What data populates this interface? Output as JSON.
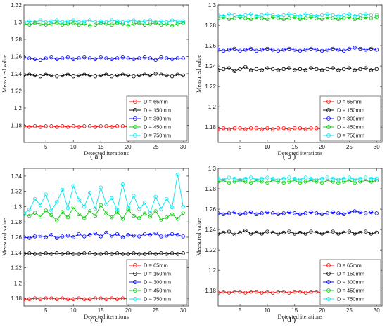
{
  "chart_data": [
    {
      "type": "line",
      "panel_label": "( a )",
      "xlabel": "Detected iterations",
      "ylabel": "Measured value",
      "xlim": [
        1,
        31
      ],
      "ylim": [
        1.16,
        1.32
      ],
      "xticks": [
        5,
        10,
        15,
        20,
        25,
        30
      ],
      "yticks": [
        1.18,
        1.2,
        1.22,
        1.24,
        1.26,
        1.28,
        1.3,
        1.32
      ],
      "legend_position": "bottom-right",
      "x": [
        1,
        2,
        3,
        4,
        5,
        6,
        7,
        8,
        9,
        10,
        11,
        12,
        13,
        14,
        15,
        16,
        17,
        18,
        19,
        20,
        21,
        22,
        23,
        24,
        25,
        26,
        27,
        28,
        29,
        30
      ],
      "series": [
        {
          "name": "D = 65mm",
          "color": "#ff0000",
          "values": [
            1.179,
            1.178,
            1.179,
            1.178,
            1.179,
            1.179,
            1.178,
            1.179,
            1.178,
            1.179,
            1.178,
            1.179,
            1.179,
            1.178,
            1.179,
            1.179,
            1.178,
            1.179,
            1.179,
            1.178,
            1.18,
            1.179,
            1.18,
            1.179,
            1.178,
            1.179,
            1.179,
            1.178,
            1.179,
            1.179
          ]
        },
        {
          "name": "D = 150mm",
          "color": "#000000",
          "values": [
            1.238,
            1.239,
            1.238,
            1.237,
            1.239,
            1.238,
            1.237,
            1.238,
            1.239,
            1.237,
            1.238,
            1.239,
            1.238,
            1.237,
            1.238,
            1.239,
            1.237,
            1.238,
            1.239,
            1.238,
            1.237,
            1.238,
            1.239,
            1.238,
            1.24,
            1.239,
            1.238,
            1.237,
            1.239,
            1.238
          ]
        },
        {
          "name": "D = 300mm",
          "color": "#0000ff",
          "values": [
            1.259,
            1.258,
            1.257,
            1.256,
            1.258,
            1.259,
            1.257,
            1.258,
            1.259,
            1.257,
            1.258,
            1.259,
            1.258,
            1.257,
            1.259,
            1.258,
            1.257,
            1.258,
            1.259,
            1.258,
            1.257,
            1.258,
            1.259,
            1.258,
            1.256,
            1.259,
            1.258,
            1.257,
            1.258,
            1.258
          ]
        },
        {
          "name": "D = 450mm",
          "color": "#00cc00",
          "values": [
            1.298,
            1.297,
            1.299,
            1.298,
            1.297,
            1.298,
            1.299,
            1.297,
            1.298,
            1.299,
            1.297,
            1.298,
            1.296,
            1.297,
            1.299,
            1.298,
            1.297,
            1.299,
            1.298,
            1.296,
            1.298,
            1.299,
            1.297,
            1.298,
            1.299,
            1.297,
            1.298,
            1.296,
            1.298,
            1.299
          ]
        },
        {
          "name": "D = 750mm",
          "color": "#00e5ee",
          "values": [
            1.3,
            1.301,
            1.3,
            1.302,
            1.3,
            1.301,
            1.302,
            1.3,
            1.301,
            1.302,
            1.3,
            1.301,
            1.302,
            1.3,
            1.301,
            1.3,
            1.302,
            1.301,
            1.3,
            1.301,
            1.302,
            1.3,
            1.301,
            1.302,
            1.3,
            1.301,
            1.3,
            1.302,
            1.301,
            1.301
          ]
        }
      ]
    },
    {
      "type": "line",
      "panel_label": "( b )",
      "xlabel": "Detected iterations",
      "ylabel": "Measured value",
      "xlim": [
        1,
        31
      ],
      "ylim": [
        1.165,
        1.3
      ],
      "xticks": [
        5,
        10,
        15,
        20,
        25,
        30
      ],
      "yticks": [
        1.18,
        1.2,
        1.22,
        1.24,
        1.26,
        1.28,
        1.3
      ],
      "legend_position": "bottom-right",
      "x": [
        1,
        2,
        3,
        4,
        5,
        6,
        7,
        8,
        9,
        10,
        11,
        12,
        13,
        14,
        15,
        16,
        17,
        18,
        19,
        20,
        21,
        22,
        23,
        24,
        25,
        26,
        27,
        28,
        29,
        30
      ],
      "series": [
        {
          "name": "D = 65mm",
          "color": "#ff0000",
          "values": [
            1.178,
            1.179,
            1.178,
            1.179,
            1.179,
            1.178,
            1.179,
            1.179,
            1.178,
            1.179,
            1.178,
            1.179,
            1.179,
            1.178,
            1.179,
            1.179,
            1.178,
            1.179,
            1.179,
            1.178,
            1.18,
            1.181,
            1.179,
            1.18,
            1.179,
            1.178,
            1.179,
            1.179,
            1.178,
            1.179
          ]
        },
        {
          "name": "D = 150mm",
          "color": "#000000",
          "values": [
            1.236,
            1.237,
            1.238,
            1.235,
            1.237,
            1.239,
            1.236,
            1.237,
            1.236,
            1.238,
            1.237,
            1.236,
            1.237,
            1.238,
            1.236,
            1.237,
            1.236,
            1.238,
            1.237,
            1.236,
            1.237,
            1.238,
            1.236,
            1.237,
            1.238,
            1.236,
            1.237,
            1.238,
            1.236,
            1.237
          ]
        },
        {
          "name": "D = 300mm",
          "color": "#0000ff",
          "values": [
            1.256,
            1.255,
            1.256,
            1.257,
            1.255,
            1.256,
            1.257,
            1.255,
            1.256,
            1.257,
            1.256,
            1.255,
            1.256,
            1.257,
            1.256,
            1.255,
            1.256,
            1.257,
            1.256,
            1.255,
            1.256,
            1.257,
            1.256,
            1.255,
            1.257,
            1.258,
            1.257,
            1.256,
            1.257,
            1.256
          ]
        },
        {
          "name": "D = 450mm",
          "color": "#00cc00",
          "values": [
            1.287,
            1.288,
            1.286,
            1.287,
            1.288,
            1.287,
            1.286,
            1.288,
            1.287,
            1.286,
            1.288,
            1.287,
            1.286,
            1.287,
            1.288,
            1.286,
            1.287,
            1.288,
            1.287,
            1.286,
            1.288,
            1.287,
            1.286,
            1.287,
            1.288,
            1.286,
            1.287,
            1.288,
            1.287,
            1.288
          ]
        },
        {
          "name": "D = 750mm",
          "color": "#00e5ee",
          "values": [
            1.29,
            1.289,
            1.291,
            1.29,
            1.289,
            1.29,
            1.291,
            1.289,
            1.29,
            1.291,
            1.29,
            1.289,
            1.29,
            1.291,
            1.29,
            1.289,
            1.291,
            1.29,
            1.289,
            1.29,
            1.291,
            1.29,
            1.289,
            1.29,
            1.291,
            1.289,
            1.29,
            1.291,
            1.29,
            1.29
          ]
        }
      ]
    },
    {
      "type": "line",
      "panel_label": "( c )",
      "xlabel": "Detected iterations",
      "ylabel": "Measured value",
      "xlim": [
        1,
        31
      ],
      "ylim": [
        1.17,
        1.35
      ],
      "xticks": [
        5,
        10,
        15,
        20,
        25,
        30
      ],
      "yticks": [
        1.18,
        1.2,
        1.22,
        1.24,
        1.26,
        1.28,
        1.3,
        1.32,
        1.34
      ],
      "legend_position": "bottom-right",
      "x": [
        1,
        2,
        3,
        4,
        5,
        6,
        7,
        8,
        9,
        10,
        11,
        12,
        13,
        14,
        15,
        16,
        17,
        18,
        19,
        20,
        21,
        22,
        23,
        24,
        25,
        26,
        27,
        28,
        29,
        30
      ],
      "series": [
        {
          "name": "D = 65mm",
          "color": "#ff0000",
          "values": [
            1.179,
            1.179,
            1.18,
            1.179,
            1.18,
            1.18,
            1.179,
            1.18,
            1.179,
            1.179,
            1.18,
            1.179,
            1.179,
            1.18,
            1.18,
            1.179,
            1.18,
            1.179,
            1.18,
            1.179,
            1.18,
            1.181,
            1.18,
            1.18,
            1.181,
            1.18,
            1.18,
            1.181,
            1.18,
            1.181
          ]
        },
        {
          "name": "D = 150mm",
          "color": "#000000",
          "values": [
            1.238,
            1.239,
            1.238,
            1.238,
            1.239,
            1.238,
            1.239,
            1.238,
            1.239,
            1.238,
            1.238,
            1.239,
            1.239,
            1.238,
            1.238,
            1.239,
            1.238,
            1.239,
            1.238,
            1.238,
            1.239,
            1.238,
            1.238,
            1.239,
            1.238,
            1.239,
            1.238,
            1.239,
            1.238,
            1.239
          ]
        },
        {
          "name": "D = 300mm",
          "color": "#0000ff",
          "values": [
            1.26,
            1.259,
            1.261,
            1.262,
            1.26,
            1.263,
            1.259,
            1.261,
            1.262,
            1.26,
            1.264,
            1.261,
            1.263,
            1.265,
            1.261,
            1.266,
            1.262,
            1.264,
            1.26,
            1.263,
            1.262,
            1.261,
            1.264,
            1.263,
            1.265,
            1.261,
            1.262,
            1.264,
            1.263,
            1.261
          ]
        },
        {
          "name": "D = 450mm",
          "color": "#00cc00",
          "values": [
            1.29,
            1.288,
            1.292,
            1.287,
            1.295,
            1.289,
            1.282,
            1.293,
            1.286,
            1.299,
            1.29,
            1.285,
            1.294,
            1.288,
            1.302,
            1.291,
            1.286,
            1.293,
            1.284,
            1.296,
            1.288,
            1.285,
            1.291,
            1.287,
            1.294,
            1.283,
            1.286,
            1.29,
            1.284,
            1.292
          ]
        },
        {
          "name": "D = 750mm",
          "color": "#00e5ee",
          "values": [
            1.291,
            1.296,
            1.31,
            1.302,
            1.316,
            1.295,
            1.306,
            1.322,
            1.298,
            1.327,
            1.309,
            1.3,
            1.318,
            1.297,
            1.325,
            1.303,
            1.311,
            1.296,
            1.329,
            1.299,
            1.314,
            1.297,
            1.305,
            1.292,
            1.313,
            1.297,
            1.31,
            1.299,
            1.342,
            1.3
          ]
        }
      ]
    },
    {
      "type": "line",
      "panel_label": "( d )",
      "xlabel": "Detected iterations",
      "ylabel": "Measured value",
      "xlim": [
        1,
        31
      ],
      "ylim": [
        1.165,
        1.3
      ],
      "xticks": [
        5,
        10,
        15,
        20,
        25,
        30
      ],
      "yticks": [
        1.18,
        1.2,
        1.22,
        1.24,
        1.26,
        1.28,
        1.3
      ],
      "legend_position": "bottom-right",
      "x": [
        1,
        2,
        3,
        4,
        5,
        6,
        7,
        8,
        9,
        10,
        11,
        12,
        13,
        14,
        15,
        16,
        17,
        18,
        19,
        20,
        21,
        22,
        23,
        24,
        25,
        26,
        27,
        28,
        29,
        30
      ],
      "series": [
        {
          "name": "D = 65mm",
          "color": "#ff0000",
          "values": [
            1.178,
            1.179,
            1.178,
            1.179,
            1.179,
            1.178,
            1.179,
            1.179,
            1.178,
            1.179,
            1.178,
            1.179,
            1.179,
            1.178,
            1.179,
            1.179,
            1.178,
            1.179,
            1.179,
            1.178,
            1.18,
            1.181,
            1.179,
            1.18,
            1.179,
            1.178,
            1.179,
            1.179,
            1.178,
            1.179
          ]
        },
        {
          "name": "D = 150mm",
          "color": "#000000",
          "values": [
            1.236,
            1.237,
            1.238,
            1.235,
            1.237,
            1.239,
            1.236,
            1.237,
            1.236,
            1.238,
            1.237,
            1.236,
            1.237,
            1.238,
            1.236,
            1.237,
            1.236,
            1.238,
            1.237,
            1.236,
            1.237,
            1.238,
            1.236,
            1.237,
            1.238,
            1.236,
            1.237,
            1.238,
            1.236,
            1.237
          ]
        },
        {
          "name": "D = 300mm",
          "color": "#0000ff",
          "values": [
            1.256,
            1.255,
            1.256,
            1.257,
            1.255,
            1.256,
            1.257,
            1.255,
            1.256,
            1.257,
            1.256,
            1.255,
            1.256,
            1.257,
            1.256,
            1.255,
            1.256,
            1.257,
            1.256,
            1.255,
            1.256,
            1.257,
            1.256,
            1.255,
            1.257,
            1.258,
            1.257,
            1.256,
            1.257,
            1.256
          ]
        },
        {
          "name": "D = 450mm",
          "color": "#00cc00",
          "values": [
            1.287,
            1.288,
            1.286,
            1.287,
            1.288,
            1.287,
            1.286,
            1.288,
            1.287,
            1.286,
            1.288,
            1.287,
            1.286,
            1.287,
            1.288,
            1.286,
            1.287,
            1.288,
            1.287,
            1.286,
            1.288,
            1.287,
            1.286,
            1.287,
            1.288,
            1.286,
            1.287,
            1.288,
            1.287,
            1.288
          ]
        },
        {
          "name": "D = 750mm",
          "color": "#00e5ee",
          "values": [
            1.29,
            1.289,
            1.291,
            1.29,
            1.289,
            1.29,
            1.291,
            1.289,
            1.29,
            1.291,
            1.29,
            1.289,
            1.29,
            1.291,
            1.29,
            1.289,
            1.291,
            1.29,
            1.289,
            1.29,
            1.291,
            1.29,
            1.289,
            1.29,
            1.291,
            1.289,
            1.29,
            1.291,
            1.29,
            1.29
          ]
        }
      ]
    }
  ]
}
